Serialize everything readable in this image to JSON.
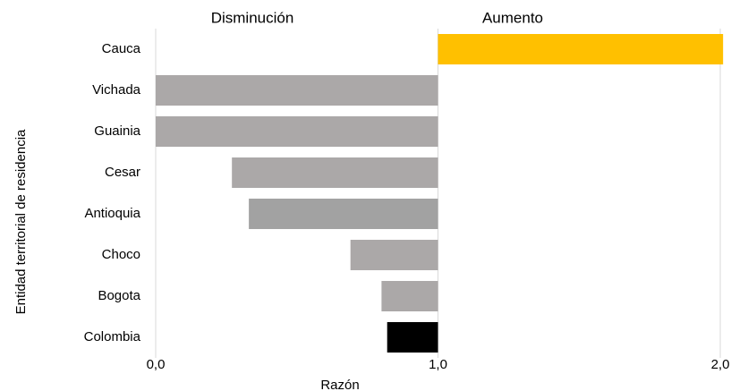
{
  "chart_data": {
    "type": "bar",
    "orientation": "horizontal",
    "annotations": [
      "Disminución",
      "Aumento"
    ],
    "x_label": "Razón",
    "y_label": "Entidad territorial de residencia",
    "categories": [
      "Cauca",
      "Vichada",
      "Guainia",
      "Cesar",
      "Antioquia",
      "Choco",
      "Bogota",
      "Colombia"
    ],
    "values": [
      2.01,
      0.0,
      0.0,
      0.27,
      0.33,
      0.69,
      0.8,
      0.82
    ],
    "colors": [
      "#ffc000",
      "#aba8a8",
      "#aba8a8",
      "#aba8a8",
      "#a2a2a2",
      "#aba8a8",
      "#aba8a8",
      "#000000"
    ],
    "baseline": 1,
    "xlim": [
      0,
      2
    ],
    "xticks": [
      {
        "value": 0,
        "label": "0,0"
      },
      {
        "value": 1,
        "label": "1,0"
      },
      {
        "value": 2,
        "label": "2,0"
      }
    ],
    "grid": true
  }
}
